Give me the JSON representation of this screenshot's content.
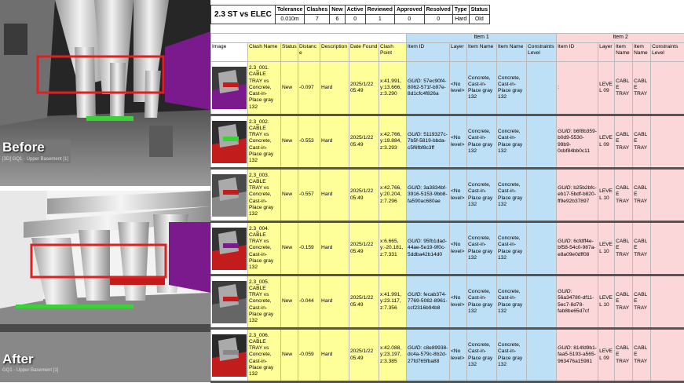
{
  "viewports": [
    {
      "caption": "Before",
      "subcaption": "[3D] GQ1 - Upper Basement [1]"
    },
    {
      "caption": "After",
      "subcaption": "GQ1 - Upper Basement [1]"
    }
  ],
  "summary": {
    "test_name": "2.3 ST vs ELEC",
    "headers": [
      "Tolerance",
      "Clashes",
      "New",
      "Active",
      "Reviewed",
      "Approved",
      "Resolved",
      "Type",
      "Status"
    ],
    "values": [
      "0.010m",
      "7",
      "6",
      "0",
      "1",
      "0",
      "0",
      "Hard",
      "Old"
    ]
  },
  "groups": {
    "item1": "Item 1",
    "item2": "Item 2"
  },
  "columns": {
    "image": "Image",
    "clash_name": "Clash Name",
    "status": "Status",
    "distance": "Distance",
    "description": "Description",
    "date_found": "Date Found",
    "clash_point": "Clash Point",
    "i1_item_id": "Item ID",
    "i1_layer": "Layer",
    "i1_item_name": "Item Name",
    "i1_item_name2": "Item Name",
    "i1_constraints": "Constraints Level",
    "i2_item_id": "Item ID",
    "i2_layer": "Layer",
    "i2_item_name": "Item Name",
    "i2_item_name2": "Item Name",
    "i2_constraints": "Constraints Level"
  },
  "rows": [
    {
      "clash_name": "2.3_001. CABLE TRAY vs Concrete, Cast-in-Place gray 132",
      "status": "New",
      "distance": "-0.097",
      "description": "Hard",
      "date_found": "2025/1/22 05:49",
      "clash_point": "x:41.991, y:13.666, z:3.290",
      "i1_guid_label": "GUID:",
      "i1_guid": "57ec90f4-8062-571f-b97e-8d1cfc4f826a",
      "i1_layer": "<No level>",
      "i1_item_name": "Concrete, Cast-in-Place gray 132",
      "i1_item_name2": "Concrete, Cast-in-Place gray 132",
      "i1_constraints": "",
      "i2_guid_label": "",
      "i2_guid": ":",
      "i2_layer": "LEVEL 09",
      "i2_item_name": "CABLE TRAY",
      "i2_item_name2": "CABLE TRAY",
      "i2_constraints": ""
    },
    {
      "clash_name": "2.3_002. CABLE TRAY vs Concrete, Cast-in-Place gray 132",
      "status": "New",
      "distance": "-0.553",
      "description": "Hard",
      "date_found": "2025/1/22 05:49",
      "clash_point": "x:42.766, y:19.884, z:3.293",
      "i1_guid_label": "GUID:",
      "i1_guid": "5119327c-7b5f-5819-bbda-c5f6fbf8c3ff",
      "i1_layer": "<No level>",
      "i1_item_name": "Concrete, Cast-in-Place gray 132",
      "i1_item_name2": "Concrete, Cast-in-Place gray 132",
      "i1_constraints": "",
      "i2_guid_label": "GUID:",
      "i2_guid": "b6f8b359-b0d9-5530-99b9-0cbf84bb0c11",
      "i2_layer": "LEVEL 09",
      "i2_item_name": "CABLE TRAY",
      "i2_item_name2": "CABLE TRAY",
      "i2_constraints": ""
    },
    {
      "clash_name": "2.3_003. CABLE TRAY vs Concrete, Cast-in-Place gray 132",
      "status": "New",
      "distance": "-0.557",
      "description": "Hard",
      "date_found": "2025/1/22 05:49",
      "clash_point": "x:42.766, y:20.204, z:7.296",
      "i1_guid_label": "GUID:",
      "i1_guid": "3a3834bf-3916-5153-9bb8-fa590ac680ae",
      "i1_layer": "<No level>",
      "i1_item_name": "Concrete, Cast-in-Place gray 132",
      "i1_item_name2": "Concrete, Cast-in-Place gray 132",
      "i1_constraints": "",
      "i2_guid_label": "GUID:",
      "i2_guid": "b25b2bfc-eb17-5bdf-b820-ff9e92b37897",
      "i2_layer": "LEVEL 10",
      "i2_item_name": "CABLE TRAY",
      "i2_item_name2": "CABLE TRAY",
      "i2_constraints": ""
    },
    {
      "clash_name": "2.3_004. CABLE TRAY vs Concrete, Cast-in-Place gray 132",
      "status": "New",
      "distance": "-0.159",
      "description": "Hard",
      "date_found": "2025/1/22 05:49",
      "clash_point": "x:6.665, y:-20.181, z:7.331",
      "i1_guid_label": "GUID:",
      "i1_guid": "95fb1dad-44ae-5e19-9f0c-5ddba42b14d0",
      "i1_layer": "<No level>",
      "i1_item_name": "Concrete, Cast-in-Place gray 132",
      "i1_item_name2": "Concrete, Cast-in-Place gray 132",
      "i1_constraints": "",
      "i2_guid_label": "GUID:",
      "i2_guid": "6cfdff4e-bf58-54c0-987a-e8a09e0dff08",
      "i2_layer": "LEVEL 10",
      "i2_item_name": "CABLE TRAY",
      "i2_item_name2": "CABLE TRAY",
      "i2_constraints": ""
    },
    {
      "clash_name": "2.3_005. CABLE TRAY vs Concrete, Cast-in-Place gray 132",
      "status": "New",
      "distance": "-0.044",
      "description": "Hard",
      "date_found": "2025/1/22 05:49",
      "clash_point": "x:41.991, y:23.117, z:7.356",
      "i1_guid_label": "GUID:",
      "i1_guid": "fecab374-7769-5082-8961-ccf2316b94b8",
      "i1_layer": "<No level>",
      "i1_item_name": "Concrete, Cast-in-Place gray 132",
      "i1_item_name2": "Concrete, Cast-in-Place gray 132",
      "i1_constraints": "",
      "i2_guid_label": "GUID:",
      "i2_guid": "56a34780-df11-5ec7-8d78-fab8be65d7cf",
      "i2_layer": "LEVEL 10",
      "i2_item_name": "CABLE TRAY",
      "i2_item_name2": "CABLE TRAY",
      "i2_constraints": ""
    },
    {
      "clash_name": "2.3_006. CABLE TRAY vs Concrete, Cast-in-Place gray 132",
      "status": "New",
      "distance": "-0.059",
      "description": "Hard",
      "date_found": "2025/1/22 05:49",
      "clash_point": "x:42.088, y:23.197, z:3.385",
      "i1_guid_label": "GUID:",
      "i1_guid": "c8e89938-dc4a-579c-8b2d-27fd765fba88",
      "i1_layer": "<No level>",
      "i1_item_name": "Concrete, Cast-in-Place gray 132",
      "i1_item_name2": "Concrete, Cast-in-Place gray 132",
      "i1_constraints": "",
      "i2_guid_label": "GUID:",
      "i2_guid": "814fd9b1-faa5-5193-a565-963476a15981",
      "i2_layer": "LEVEL 09",
      "i2_item_name": "CABLE TRAY",
      "i2_item_name2": "CABLE TRAY",
      "i2_constraints": ""
    }
  ],
  "colors": {
    "yellow": "#ffff99",
    "blue": "#bde0f7",
    "pink": "#fcd7d9",
    "highlight": "#e02020"
  }
}
